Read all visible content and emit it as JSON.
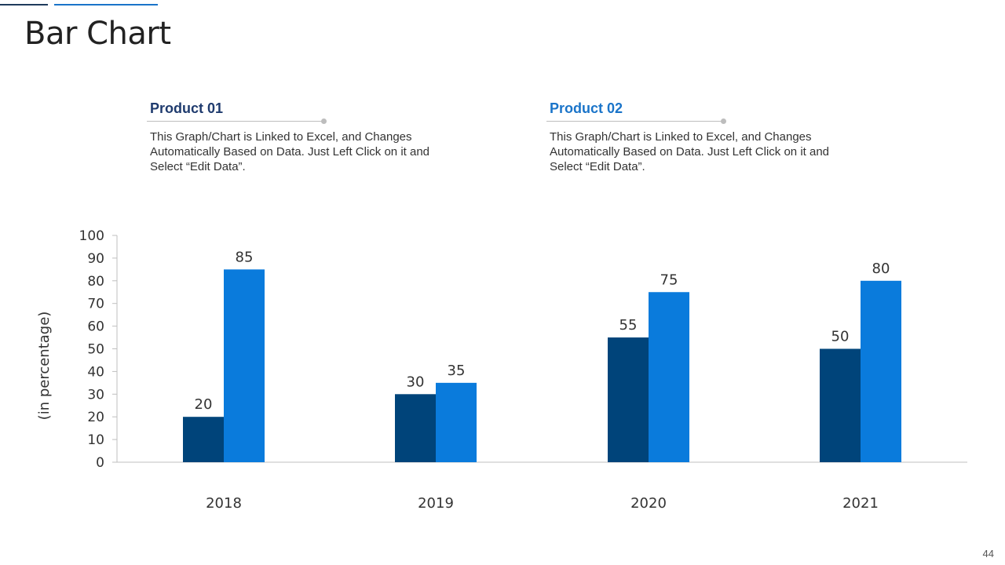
{
  "header": {
    "title": "Bar Chart"
  },
  "products": [
    {
      "title": "Product 01",
      "description": "This Graph/Chart is Linked to Excel, and Changes Automatically Based on Data. Just Left Click on it and Select “Edit Data”."
    },
    {
      "title": "Product 02",
      "description": "This Graph/Chart is Linked to Excel, and Changes Automatically Based on Data. Just Left Click on it and Select “Edit Data”."
    }
  ],
  "page_number": "44",
  "colors": {
    "series1": "#00447a",
    "series2": "#0a7bdc",
    "axis": "#bfbfbf",
    "text": "#333333"
  },
  "chart_data": {
    "type": "bar",
    "title": "",
    "xlabel": "",
    "ylabel": "(in percentage)",
    "categories": [
      "2018",
      "2019",
      "2020",
      "2021"
    ],
    "series": [
      {
        "name": "Product 01",
        "values": [
          20,
          30,
          55,
          50
        ]
      },
      {
        "name": "Product 02",
        "values": [
          85,
          35,
          75,
          80
        ]
      }
    ],
    "ylim": [
      0,
      100
    ],
    "yticks": [
      0,
      10,
      20,
      30,
      40,
      50,
      60,
      70,
      80,
      90,
      100
    ],
    "grid": false,
    "legend": "none"
  }
}
